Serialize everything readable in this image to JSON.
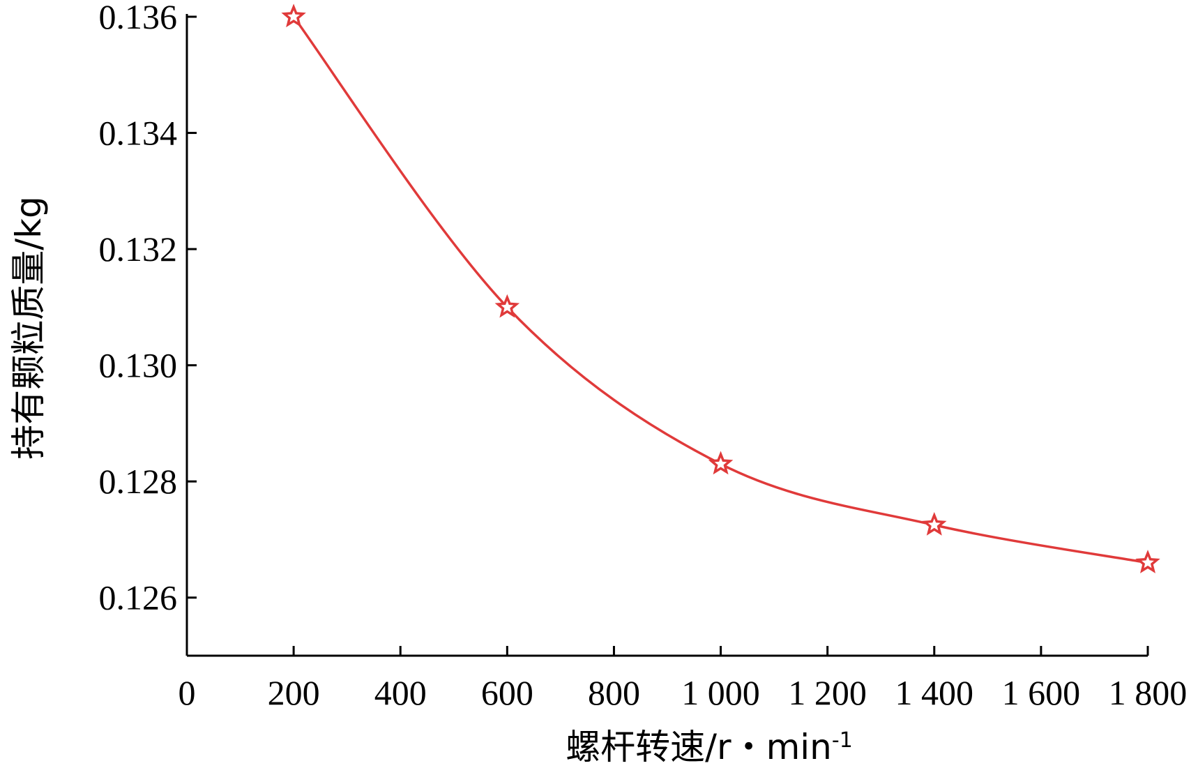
{
  "colors": {
    "series": "#e03a3a",
    "axis": "#000000"
  },
  "chart_data": {
    "type": "line",
    "xlabel": "螺杆转速/r・min",
    "xlabel_superscript": "-1",
    "ylabel": "持有颗粒质量/kg",
    "xlim": [
      0,
      1800
    ],
    "ylim": [
      0.125,
      0.136
    ],
    "x_ticks": [
      0,
      200,
      400,
      600,
      800,
      1000,
      1200,
      1400,
      1600,
      1800
    ],
    "x_tick_labels": [
      "0",
      "200",
      "400",
      "600",
      "800",
      "1 000",
      "1 200",
      "1 400",
      "1 600",
      "1 800"
    ],
    "y_ticks": [
      0.126,
      0.128,
      0.13,
      0.132,
      0.134,
      0.136
    ],
    "y_tick_labels": [
      "0.126",
      "0.128",
      "0.130",
      "0.132",
      "0.134",
      "0.136"
    ],
    "grid": false,
    "marker": "star",
    "series": [
      {
        "x": [
          200,
          600,
          1000,
          1400,
          1800
        ],
        "y": [
          0.136,
          0.131,
          0.1283,
          0.12725,
          0.1266
        ]
      }
    ]
  }
}
